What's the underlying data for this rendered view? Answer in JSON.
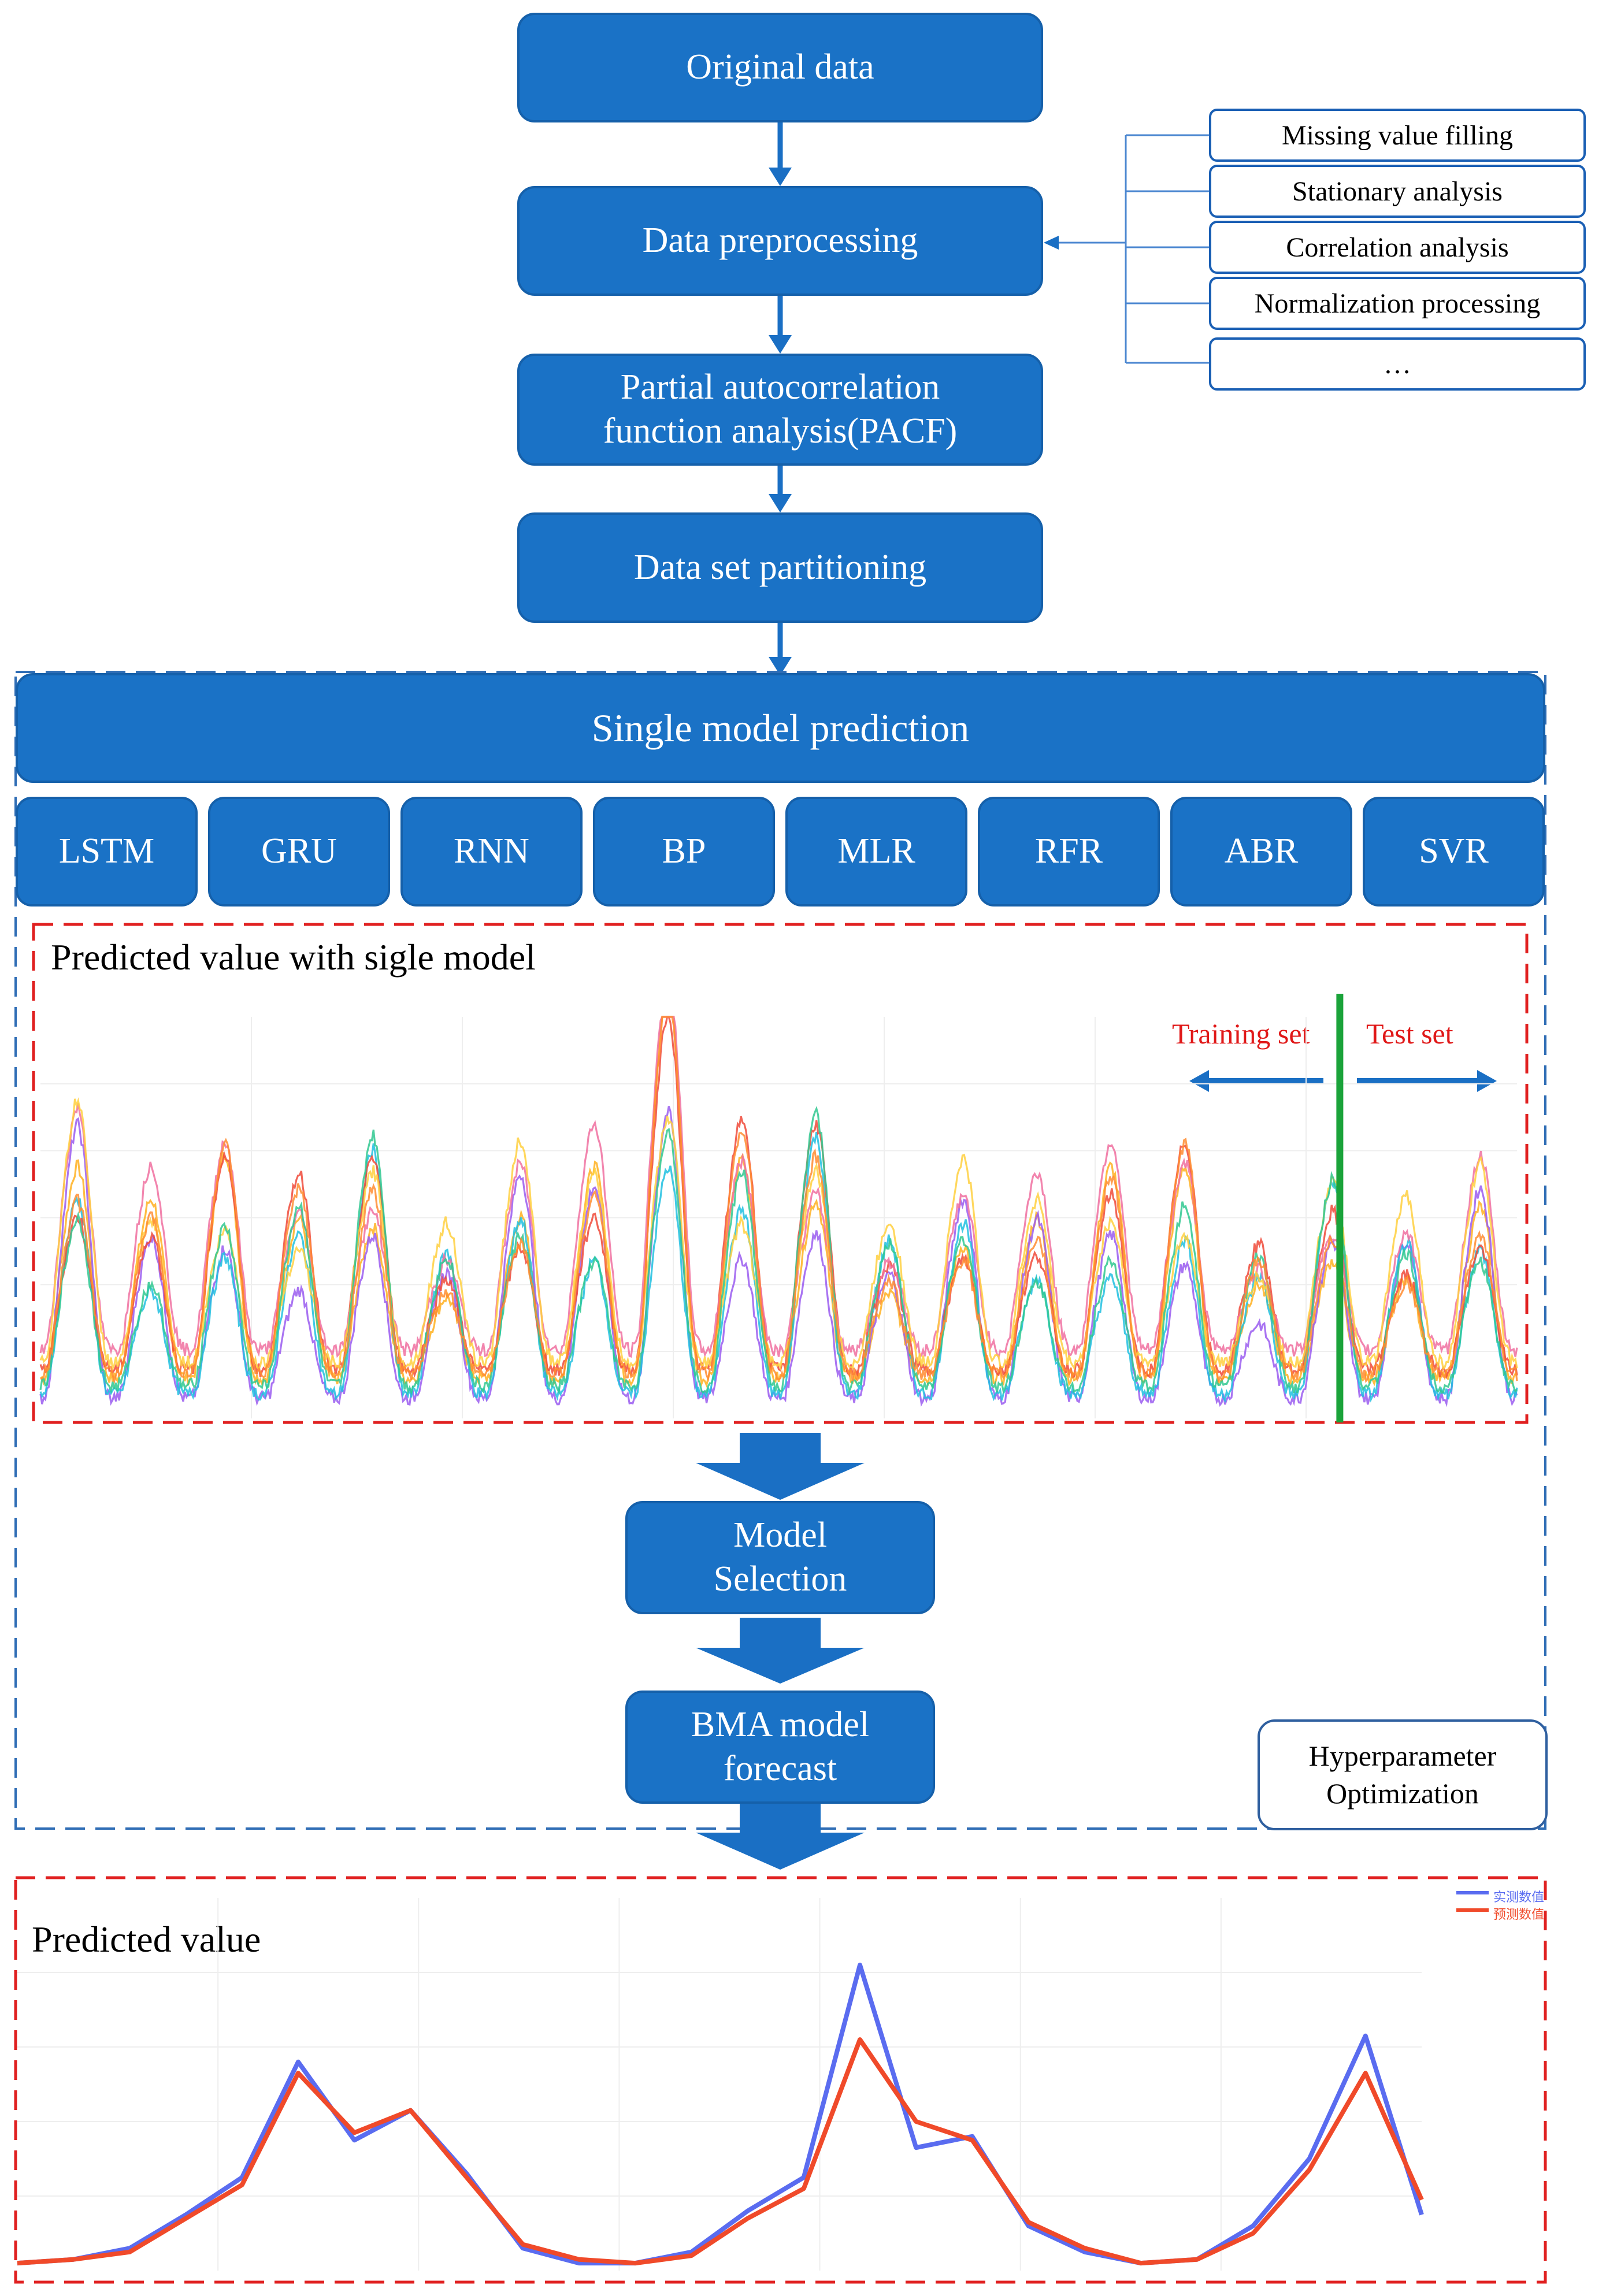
{
  "flow": {
    "original": "Original data",
    "preprocess": "Data preprocessing",
    "pacf_line1": "Partial autocorrelation",
    "pacf_line2": "function analysis(PACF)",
    "partition": "Data set partitioning",
    "single": "Single model prediction",
    "selection_line1": "Model",
    "selection_line2": "Selection",
    "bma_line1": "BMA model",
    "bma_line2": "forecast"
  },
  "preprocessing_steps": [
    "Missing value filling",
    "Stationary analysis",
    "Correlation analysis",
    "Normalization processing",
    "…"
  ],
  "models": [
    "LSTM",
    "GRU",
    "RNN",
    "BP",
    "MLR",
    "RFR",
    "ABR",
    "SVR"
  ],
  "hyperparameter": {
    "line1": "Hyperparameter",
    "line2": "Optimization"
  },
  "single_panel": {
    "title": "Predicted value with sigle model",
    "training_label": "Training set",
    "test_label": "Test set"
  },
  "final_panel": {
    "title": "Predicted value",
    "legend": [
      "实测数值",
      "预测数值"
    ]
  },
  "colors": {
    "box": "#1a72c6",
    "arrow": "#1a6fc4",
    "dashed_red": "#e02020",
    "dashed_blue": "#2f6db5",
    "split_line": "#1aa33a",
    "actual": "#5a6cf0",
    "predicted": "#f04a2a"
  },
  "chart_data": [
    {
      "type": "line",
      "title": "Predicted value with sigle model",
      "series": [
        {
          "name": "LSTM"
        },
        {
          "name": "GRU"
        },
        {
          "name": "RNN"
        },
        {
          "name": "BP"
        },
        {
          "name": "MLR"
        },
        {
          "name": "RFR"
        },
        {
          "name": "ABR"
        },
        {
          "name": "SVR"
        }
      ],
      "peaks": [
        0.62,
        0.42,
        0.52,
        0.45,
        0.57,
        0.33,
        0.51,
        0.52,
        0.91,
        0.57,
        0.62,
        0.35,
        0.46,
        0.42,
        0.48,
        0.52,
        0.3,
        0.48,
        0.38,
        0.48
      ],
      "annotations": [
        "Training set",
        "Test set"
      ],
      "split_fraction": 0.88
    },
    {
      "type": "line",
      "title": "Predicted value",
      "x": [
        0,
        4,
        8,
        12,
        16,
        20,
        24,
        28,
        32,
        36,
        40,
        44,
        48,
        52,
        56,
        60,
        64,
        68,
        72,
        76,
        80,
        84,
        88,
        92,
        96,
        100
      ],
      "series": [
        {
          "name": "实测数值",
          "values": [
            0.02,
            0.03,
            0.06,
            0.15,
            0.25,
            0.56,
            0.35,
            0.43,
            0.26,
            0.06,
            0.02,
            0.02,
            0.05,
            0.16,
            0.25,
            0.82,
            0.33,
            0.36,
            0.12,
            0.05,
            0.02,
            0.03,
            0.12,
            0.3,
            0.63,
            0.15
          ]
        },
        {
          "name": "预测数值",
          "values": [
            0.02,
            0.03,
            0.05,
            0.14,
            0.23,
            0.53,
            0.37,
            0.43,
            0.25,
            0.07,
            0.03,
            0.02,
            0.04,
            0.14,
            0.22,
            0.62,
            0.4,
            0.35,
            0.13,
            0.06,
            0.02,
            0.03,
            0.1,
            0.27,
            0.53,
            0.19
          ]
        }
      ]
    }
  ]
}
